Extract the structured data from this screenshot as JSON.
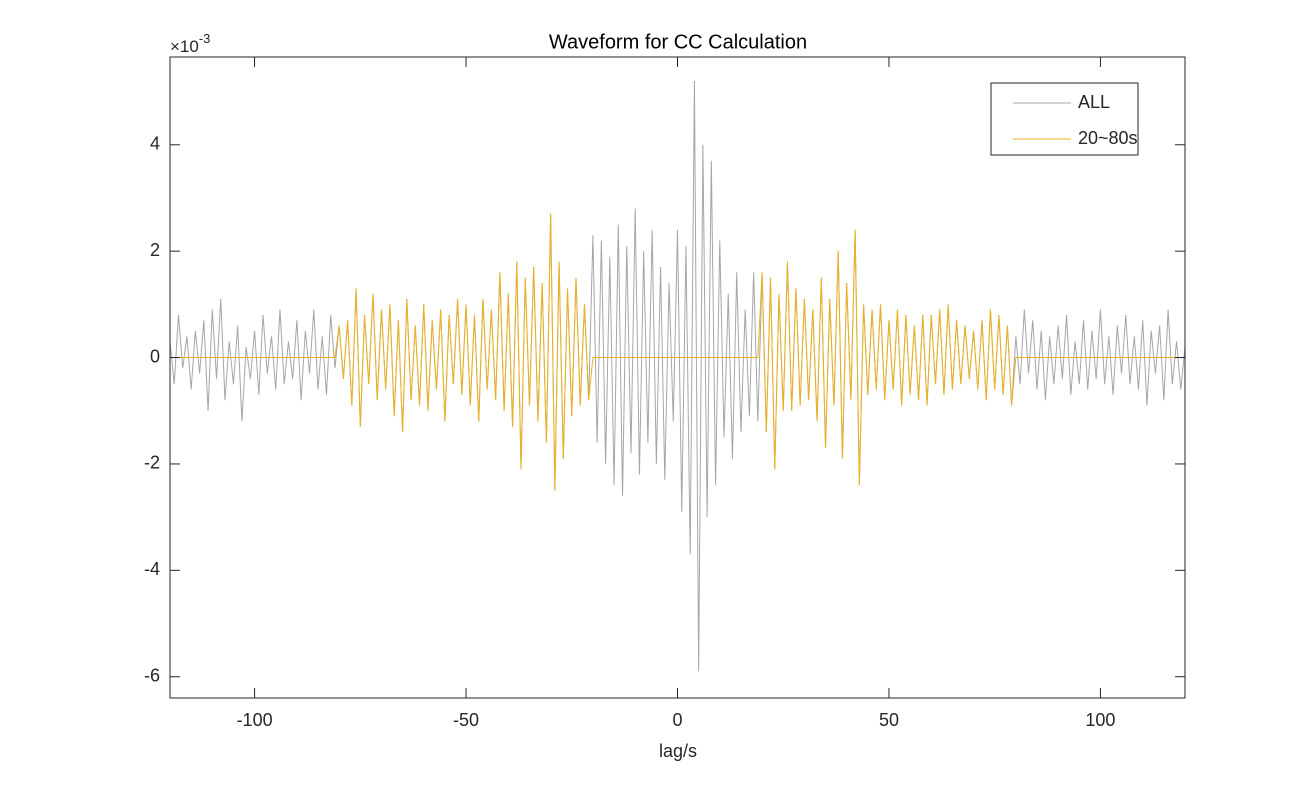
{
  "chart_data": {
    "type": "line",
    "title": "Waveform for CC Calculation",
    "x_label": "lag/s",
    "y_multiplier": {
      "base": "×10",
      "exponent": "-3"
    },
    "xlim": [
      -120,
      120
    ],
    "xticks": [
      -100,
      -50,
      0,
      50,
      100
    ],
    "ylim": [
      -6.4,
      5.65
    ],
    "yticks": [
      -6,
      -4,
      -2,
      0,
      2,
      4
    ],
    "box": true,
    "legend": "top-right",
    "x": [
      -120,
      -119,
      -118,
      -117,
      -116,
      -115,
      -114,
      -113,
      -112,
      -111,
      -110,
      -109,
      -108,
      -107,
      -106,
      -105,
      -104,
      -103,
      -102,
      -101,
      -100,
      -99,
      -98,
      -97,
      -96,
      -95,
      -94,
      -93,
      -92,
      -91,
      -90,
      -89,
      -88,
      -87,
      -86,
      -85,
      -84,
      -83,
      -82,
      -81,
      -80,
      -79,
      -78,
      -77,
      -76,
      -75,
      -74,
      -73,
      -72,
      -71,
      -70,
      -69,
      -68,
      -67,
      -66,
      -65,
      -64,
      -63,
      -62,
      -61,
      -60,
      -59,
      -58,
      -57,
      -56,
      -55,
      -54,
      -53,
      -52,
      -51,
      -50,
      -49,
      -48,
      -47,
      -46,
      -45,
      -44,
      -43,
      -42,
      -41,
      -40,
      -39,
      -38,
      -37,
      -36,
      -35,
      -34,
      -33,
      -32,
      -31,
      -30,
      -29,
      -28,
      -27,
      -26,
      -25,
      -24,
      -23,
      -22,
      -21,
      -20,
      -19,
      -18,
      -17,
      -16,
      -15,
      -14,
      -13,
      -12,
      -11,
      -10,
      -9,
      -8,
      -7,
      -6,
      -5,
      -4,
      -3,
      -2,
      -1,
      0,
      1,
      2,
      3,
      4,
      5,
      6,
      7,
      8,
      9,
      10,
      11,
      12,
      13,
      14,
      15,
      16,
      17,
      18,
      19,
      20,
      21,
      22,
      23,
      24,
      25,
      26,
      27,
      28,
      29,
      30,
      31,
      32,
      33,
      34,
      35,
      36,
      37,
      38,
      39,
      40,
      41,
      42,
      43,
      44,
      45,
      46,
      47,
      48,
      49,
      50,
      51,
      52,
      53,
      54,
      55,
      56,
      57,
      58,
      59,
      60,
      61,
      62,
      63,
      64,
      65,
      66,
      67,
      68,
      69,
      70,
      71,
      72,
      73,
      74,
      75,
      76,
      77,
      78,
      79,
      80,
      81,
      82,
      83,
      84,
      85,
      86,
      87,
      88,
      89,
      90,
      91,
      92,
      93,
      94,
      95,
      96,
      97,
      98,
      99,
      100,
      101,
      102,
      103,
      104,
      105,
      106,
      107,
      108,
      109,
      110,
      111,
      112,
      113,
      114,
      115,
      116,
      117,
      118,
      119,
      120
    ],
    "series": [
      {
        "name": "ALL",
        "color": "#a6a6a6",
        "values": [
          0.3,
          -0.5,
          0.8,
          -0.2,
          0.4,
          -0.6,
          0.5,
          -0.3,
          0.7,
          -1.0,
          0.9,
          -0.4,
          1.1,
          -0.8,
          0.3,
          -0.5,
          0.6,
          -1.2,
          0.2,
          -0.4,
          0.5,
          -0.7,
          0.8,
          -0.3,
          0.4,
          -0.6,
          0.9,
          -0.5,
          0.3,
          -0.4,
          0.7,
          -0.8,
          0.5,
          -0.3,
          0.9,
          -0.6,
          0.4,
          -0.7,
          0.8,
          -0.2,
          0.6,
          -0.4,
          0.7,
          -0.9,
          1.3,
          -1.3,
          0.8,
          -0.5,
          1.2,
          -0.8,
          0.9,
          -0.6,
          1.0,
          -1.1,
          0.7,
          -1.4,
          1.1,
          -0.8,
          0.6,
          -0.9,
          1.0,
          -1.0,
          0.7,
          -0.6,
          0.9,
          -1.2,
          0.8,
          -0.5,
          1.1,
          -0.7,
          1.0,
          -0.9,
          0.8,
          -1.2,
          1.1,
          -0.6,
          0.9,
          -0.8,
          1.6,
          -1.0,
          1.2,
          -1.3,
          1.8,
          -2.1,
          1.5,
          -0.9,
          1.7,
          -1.2,
          1.4,
          -1.6,
          2.7,
          -2.5,
          1.8,
          -1.9,
          1.3,
          -1.1,
          1.5,
          -0.9,
          1.0,
          -0.8,
          2.3,
          -1.6,
          2.2,
          -2.0,
          1.9,
          -2.4,
          2.5,
          -2.6,
          2.1,
          -1.8,
          2.8,
          -2.2,
          2.0,
          -1.6,
          2.4,
          -2.0,
          1.7,
          -2.3,
          1.4,
          -1.2,
          2.4,
          -2.9,
          2.1,
          -3.7,
          5.2,
          -5.9,
          4.0,
          -3.0,
          3.7,
          -2.4,
          2.2,
          -1.5,
          1.2,
          -1.9,
          1.6,
          -1.4,
          0.9,
          -1.1,
          1.6,
          -1.2,
          1.6,
          -1.4,
          1.5,
          -2.1,
          1.2,
          -1.0,
          1.8,
          -1.0,
          1.3,
          -0.9,
          1.1,
          -0.8,
          0.9,
          -1.2,
          1.5,
          -1.7,
          1.1,
          -0.9,
          2.0,
          -1.9,
          1.4,
          -0.8,
          2.4,
          -2.4,
          1.0,
          -0.7,
          0.9,
          -0.6,
          1.0,
          -0.8,
          0.7,
          -0.6,
          0.9,
          -0.9,
          0.8,
          -0.7,
          0.6,
          -0.8,
          0.8,
          -0.9,
          0.8,
          -0.5,
          0.9,
          -0.7,
          1.0,
          -0.6,
          0.7,
          -0.5,
          0.6,
          -0.4,
          0.5,
          -0.6,
          0.7,
          -0.8,
          0.9,
          -0.6,
          0.8,
          -0.7,
          0.6,
          -0.9,
          0.4,
          -0.5,
          0.9,
          -0.3,
          0.7,
          -0.6,
          0.5,
          -0.8,
          0.4,
          -0.5,
          0.6,
          -0.4,
          0.8,
          -0.7,
          0.3,
          -0.5,
          0.7,
          -0.6,
          0.5,
          -0.4,
          0.9,
          -0.5,
          0.4,
          -0.7,
          0.6,
          -0.3,
          0.8,
          -0.5,
          0.4,
          -0.6,
          0.7,
          -0.9,
          0.5,
          -0.3,
          0.6,
          -0.8,
          0.9,
          -0.5,
          0.3,
          -0.6,
          0.2
        ]
      },
      {
        "name": "20~80s",
        "color": "#edb120",
        "values": [
          0,
          0,
          0,
          0,
          0,
          0,
          0,
          0,
          0,
          0,
          0,
          0,
          0,
          0,
          0,
          0,
          0,
          0,
          0,
          0,
          0,
          0,
          0,
          0,
          0,
          0,
          0,
          0,
          0,
          0,
          0,
          0,
          0,
          0,
          0,
          0,
          0,
          0,
          0,
          0,
          0.6,
          -0.4,
          0.7,
          -0.9,
          1.3,
          -1.3,
          0.8,
          -0.5,
          1.2,
          -0.8,
          0.9,
          -0.6,
          1.0,
          -1.1,
          0.7,
          -1.4,
          1.1,
          -0.8,
          0.6,
          -0.9,
          1.0,
          -1.0,
          0.7,
          -0.6,
          0.9,
          -1.2,
          0.8,
          -0.5,
          1.1,
          -0.7,
          1.0,
          -0.9,
          0.8,
          -1.2,
          1.1,
          -0.6,
          0.9,
          -0.8,
          1.6,
          -1.0,
          1.2,
          -1.3,
          1.8,
          -2.1,
          1.5,
          -0.9,
          1.7,
          -1.2,
          1.4,
          -1.6,
          2.7,
          -2.5,
          1.8,
          -1.9,
          1.3,
          -1.1,
          1.5,
          -0.9,
          1.0,
          -0.8,
          0,
          0,
          0,
          0,
          0,
          0,
          0,
          0,
          0,
          0,
          0,
          0,
          0,
          0,
          0,
          0,
          0,
          0,
          0,
          0,
          0,
          0,
          0,
          0,
          0,
          0,
          0,
          0,
          0,
          0,
          0,
          0,
          0,
          0,
          0,
          0,
          0,
          0,
          0,
          0,
          1.6,
          -1.4,
          1.5,
          -2.1,
          1.2,
          -1.0,
          1.8,
          -1.0,
          1.3,
          -0.9,
          1.1,
          -0.8,
          0.9,
          -1.2,
          1.5,
          -1.7,
          1.1,
          -0.9,
          2.0,
          -1.9,
          1.4,
          -0.8,
          2.4,
          -2.4,
          1.0,
          -0.7,
          0.9,
          -0.6,
          1.0,
          -0.8,
          0.7,
          -0.6,
          0.9,
          -0.9,
          0.8,
          -0.7,
          0.6,
          -0.8,
          0.8,
          -0.9,
          0.8,
          -0.5,
          0.9,
          -0.7,
          1.0,
          -0.6,
          0.7,
          -0.5,
          0.6,
          -0.4,
          0.5,
          -0.6,
          0.7,
          -0.8,
          0.9,
          -0.6,
          0.8,
          -0.7,
          0.6,
          -0.9,
          0,
          0,
          0,
          0,
          0,
          0,
          0,
          0,
          0,
          0,
          0,
          0,
          0,
          0,
          0,
          0,
          0,
          0,
          0,
          0,
          0,
          0,
          0,
          0,
          0,
          0,
          0,
          0,
          0,
          0,
          0,
          0,
          0,
          0,
          0,
          0,
          0,
          0,
          0,
          0,
          0
        ]
      }
    ]
  }
}
